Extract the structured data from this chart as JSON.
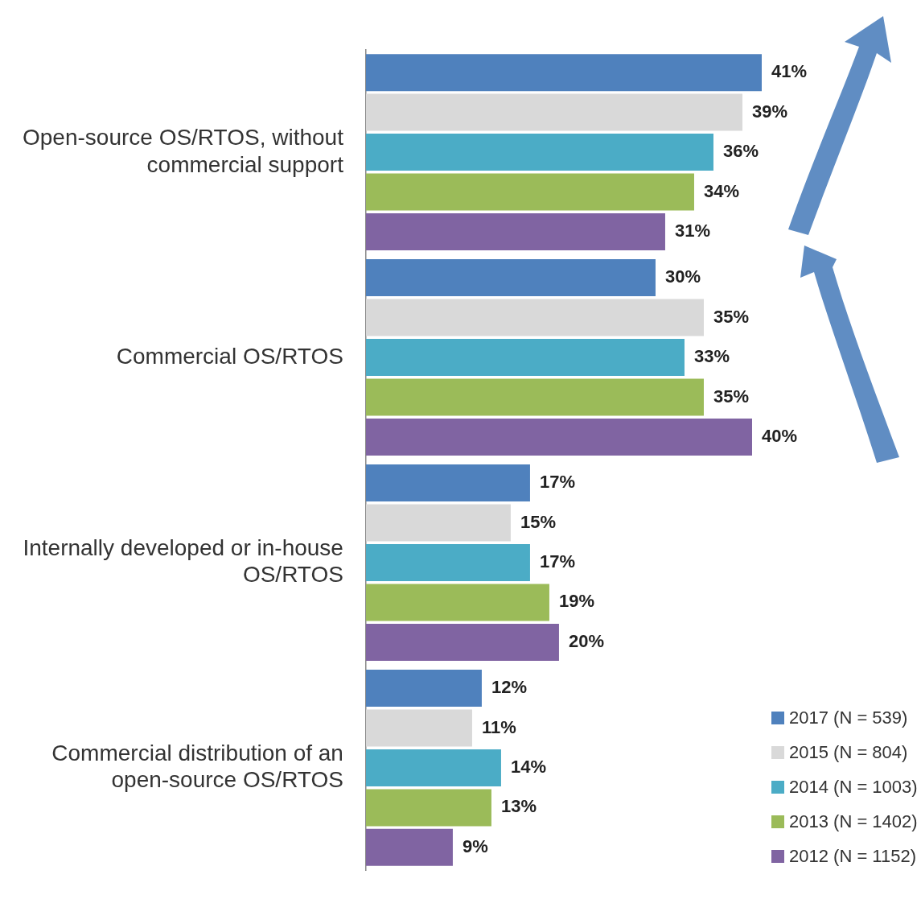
{
  "chart_data": {
    "type": "bar",
    "orientation": "horizontal",
    "categories": [
      "Open-source OS/RTOS, without commercial support",
      "Commercial OS/RTOS",
      "Internally developed or in-house OS/RTOS",
      "Commercial distribution of an open-source OS/RTOS"
    ],
    "series": [
      {
        "name": "2017 (N = 539)",
        "color": "#4f81bd",
        "values": [
          41,
          30,
          17,
          12
        ],
        "value_labels": [
          "41%",
          "30%",
          "17%",
          "12%"
        ]
      },
      {
        "name": "2015 (N = 804)",
        "color": "#d9d9d9",
        "values": [
          39,
          35,
          15,
          11
        ],
        "value_labels": [
          "39%",
          "35%",
          "15%",
          "11%"
        ]
      },
      {
        "name": "2014 (N = 1003)",
        "color": "#4bacc6",
        "values": [
          36,
          33,
          17,
          14
        ],
        "value_labels": [
          "36%",
          "33%",
          "17%",
          "14%"
        ]
      },
      {
        "name": "2013 (N = 1402)",
        "color": "#9bbb59",
        "values": [
          34,
          35,
          19,
          13
        ],
        "value_labels": [
          "34%",
          "35%",
          "19%",
          "13%"
        ]
      },
      {
        "name": "2012 (N = 1152)",
        "color": "#8064a2",
        "values": [
          31,
          40,
          20,
          9
        ],
        "value_labels": [
          "31%",
          "40%",
          "20%",
          "9%"
        ]
      }
    ],
    "tick_labels": "y",
    "legend": "bottom right"
  }
}
